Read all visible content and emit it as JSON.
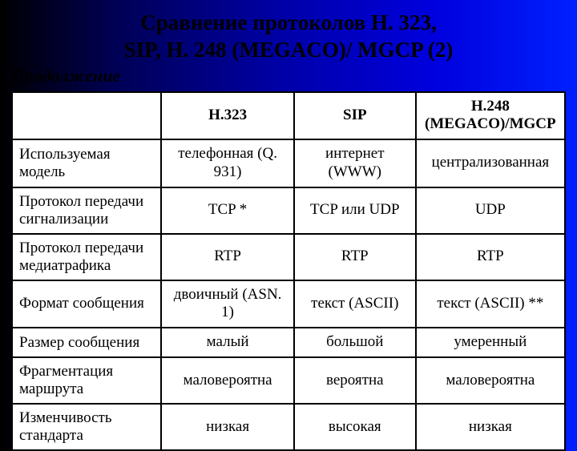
{
  "title_line1": "Сравнение протоколов H. 323,",
  "title_line2": "SIP, H. 248 (MEGACO)/ MGCP (2)",
  "subtitle": "Продолжение",
  "columns": {
    "blank": "",
    "h323": "H.323",
    "sip": "SIP",
    "h248": "H.248 (MEGACO)/MGCP"
  },
  "rows": [
    {
      "criterion": "Используемая модель",
      "h323": "телефонная (Q. 931)",
      "sip": "интернет (WWW)",
      "h248": "централизованная"
    },
    {
      "criterion": "Протокол передачи сигнализации",
      "h323": "TCP *",
      "sip": "TCP или UDP",
      "h248": "UDP"
    },
    {
      "criterion": "Протокол передачи медиатрафика",
      "h323": "RTP",
      "sip": "RTP",
      "h248": "RTP"
    },
    {
      "criterion": "Формат сообщения",
      "h323": "двоичный (ASN. 1)",
      "sip": "текст (ASCII)",
      "h248": "текст (ASCII) **"
    },
    {
      "criterion": "Размер сообщения",
      "h323": "малый",
      "sip": "большой",
      "h248": "умеренный"
    },
    {
      "criterion": "Фрагментация маршрута",
      "h323": "маловероятна",
      "sip": "вероятна",
      "h248": "маловероятна"
    },
    {
      "criterion": "Изменчивость стандарта",
      "h323": "низкая",
      "sip": "высокая",
      "h248": "низкая"
    }
  ],
  "style": {
    "background_gradient": [
      "#000000",
      "#000055",
      "#0000aa",
      "#0000dd",
      "#0020ff"
    ],
    "table_bg": "#ffffff",
    "border_color": "#000000",
    "text_color": "#000000",
    "font_family": "Times New Roman",
    "title_fontsize_pt": 20,
    "body_fontsize_pt": 14
  }
}
